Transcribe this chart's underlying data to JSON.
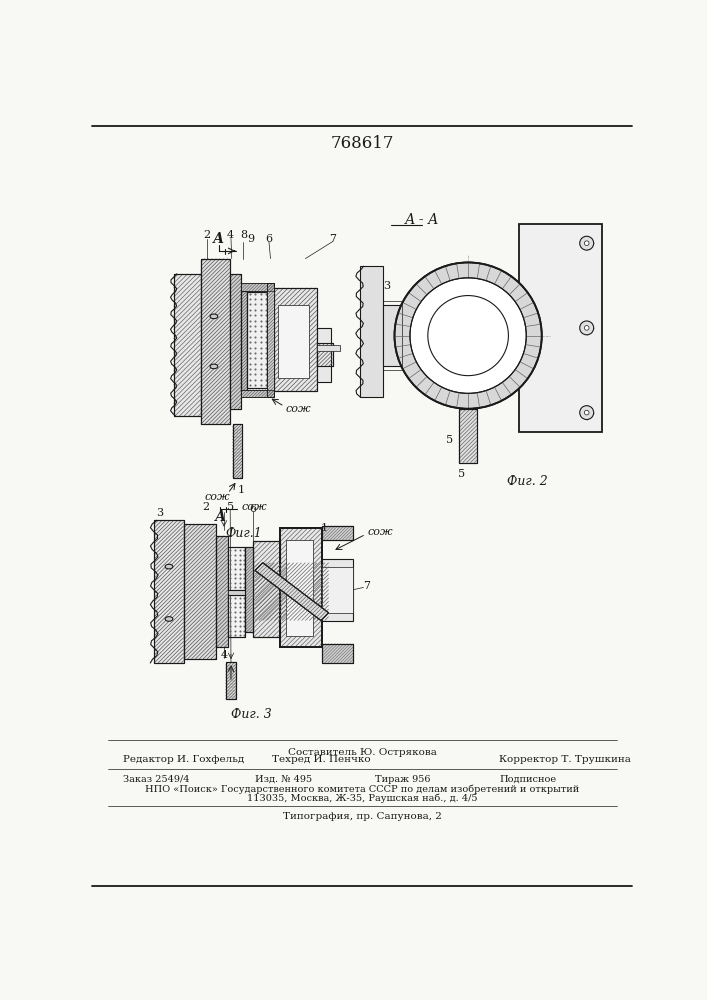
{
  "title": "768617",
  "bg_color": "#f8f8f5",
  "line_color": "#1a1a1a",
  "footer_line1": "Составитель Ю. Острякова",
  "footer_editor": "Редактор И. Гохфельд",
  "footer_tech": "Техред И. Пенчко",
  "footer_corrector": "Корректор Т. Трушкина",
  "footer_order": "Заказ 2549/4",
  "footer_izd": "Изд. № 495",
  "footer_tirazh": "Тираж 956",
  "footer_podp": "Подписное",
  "footer_npo": "НПО «Поиск» Государственного комитета СССР по делам изобретений и открытий",
  "footer_addr": "113035, Москва, Ж-35, Раушская наб., д. 4/5",
  "footer_tip": "Типография, пр. Сапунова, 2",
  "fig1_label": "Фиг.1",
  "fig2_label": "Фиг. 2",
  "fig3_label": "Фиг. 3",
  "label_AA": "А - А",
  "label_A": "А",
  "label_cozh": "сож"
}
